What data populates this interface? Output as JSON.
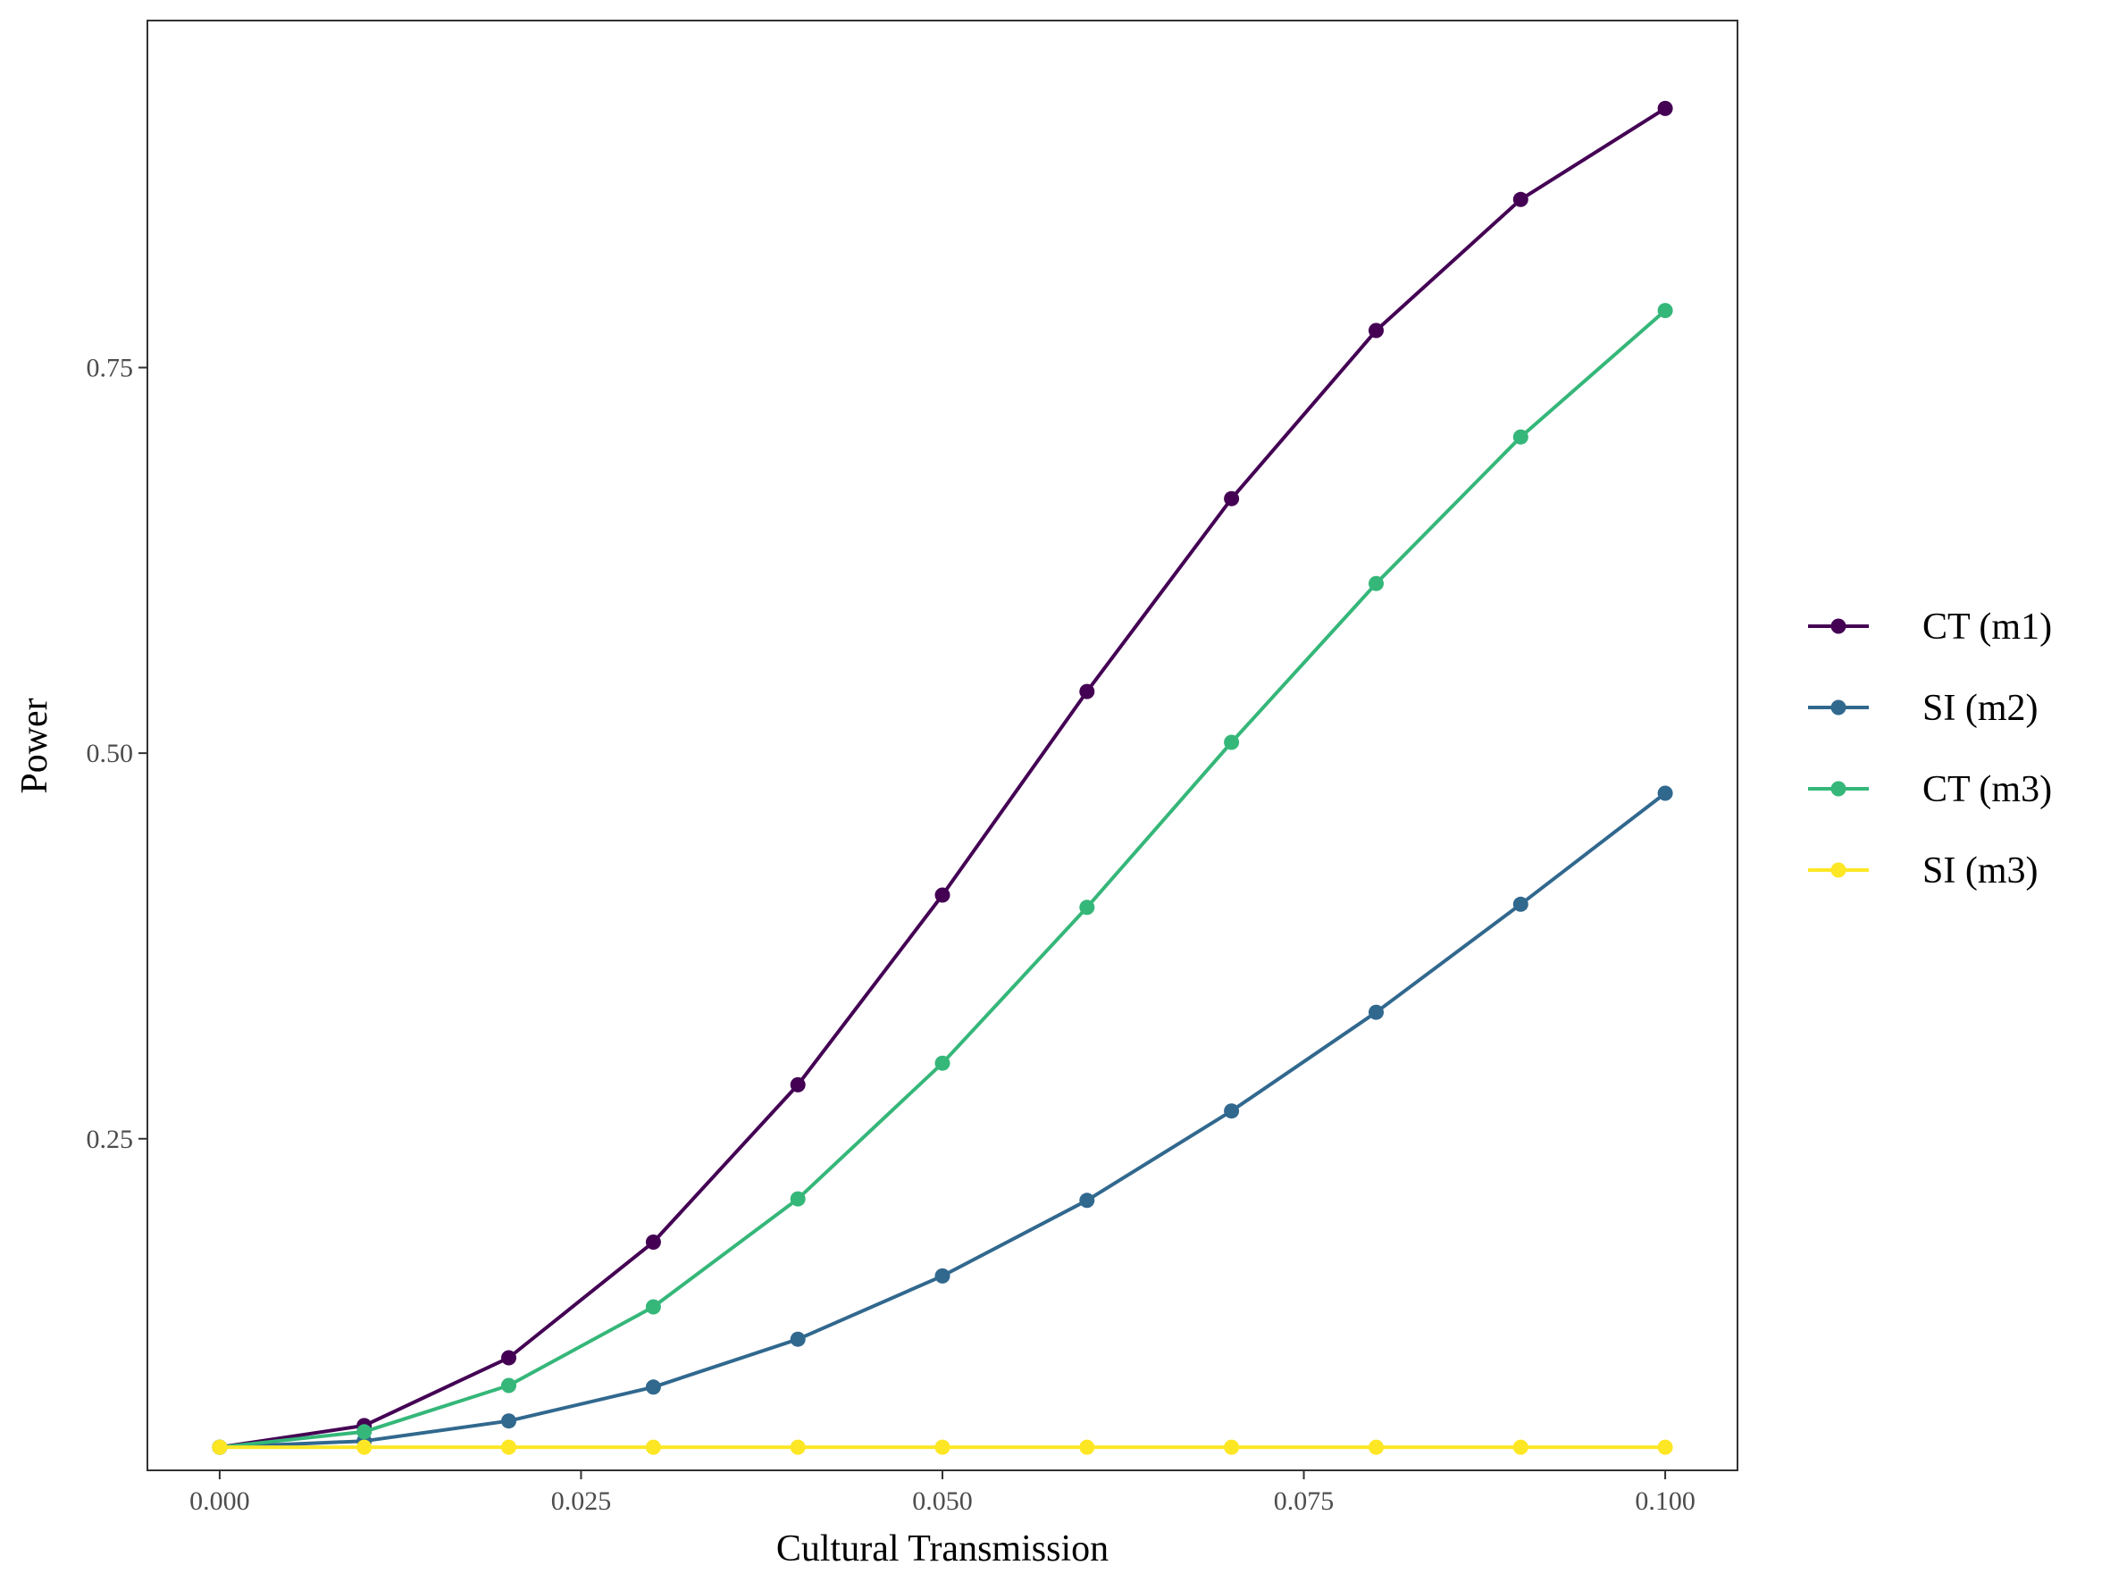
{
  "chart_data": {
    "type": "line",
    "title": "",
    "xlabel": "Cultural Transmission",
    "ylabel": "Power",
    "x": [
      0.0,
      0.01,
      0.02,
      0.03,
      0.04,
      0.05,
      0.06,
      0.07,
      0.08,
      0.09,
      0.1
    ],
    "xlim": [
      -0.005,
      0.105
    ],
    "ylim": [
      0.035,
      0.975
    ],
    "x_ticks": [
      "0.000",
      "0.025",
      "0.050",
      "0.075",
      "0.100"
    ],
    "x_tick_values": [
      0.0,
      0.025,
      0.05,
      0.075,
      0.1
    ],
    "y_ticks": [
      "0.25",
      "0.50",
      "0.75"
    ],
    "y_tick_values": [
      0.25,
      0.5,
      0.75
    ],
    "grid": false,
    "legend_position": "right",
    "series": [
      {
        "name": "CT (m1)",
        "color": "#440154",
        "values": [
          0.05,
          0.064,
          0.108,
          0.183,
          0.285,
          0.408,
          0.54,
          0.665,
          0.774,
          0.859,
          0.918
        ]
      },
      {
        "name": "SI (m2)",
        "color": "#31688e",
        "values": [
          0.05,
          0.054,
          0.067,
          0.089,
          0.12,
          0.161,
          0.21,
          0.268,
          0.332,
          0.402,
          0.474
        ]
      },
      {
        "name": "CT (m3)",
        "color": "#35b779",
        "values": [
          0.05,
          0.06,
          0.09,
          0.141,
          0.211,
          0.299,
          0.4,
          0.507,
          0.61,
          0.705,
          0.787
        ]
      },
      {
        "name": "SI (m3)",
        "color": "#fde725",
        "values": [
          0.05,
          0.05,
          0.05,
          0.05,
          0.05,
          0.05,
          0.05,
          0.05,
          0.05,
          0.05,
          0.05
        ]
      }
    ]
  }
}
